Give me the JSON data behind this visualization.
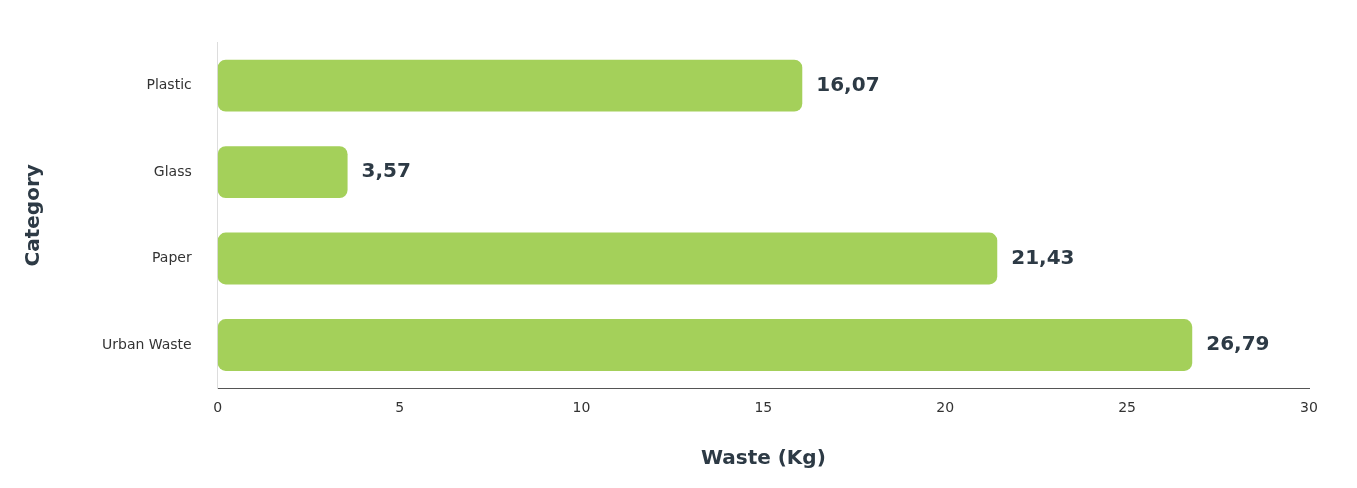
{
  "chart_data": {
    "type": "bar",
    "orientation": "horizontal",
    "xlabel": "Waste (Kg)",
    "ylabel": "Category",
    "categories": [
      "Plastic",
      "Glass",
      "Paper",
      "Urban Waste"
    ],
    "values": [
      16.07,
      3.57,
      21.43,
      26.79
    ],
    "value_labels": [
      "16,07",
      "3,57",
      "21,43",
      "26,79"
    ],
    "color": "#a4d05a",
    "xlim": [
      0,
      30
    ],
    "xticks": [
      0,
      5,
      10,
      15,
      20,
      25,
      30
    ],
    "grid": false,
    "legend": false
  }
}
